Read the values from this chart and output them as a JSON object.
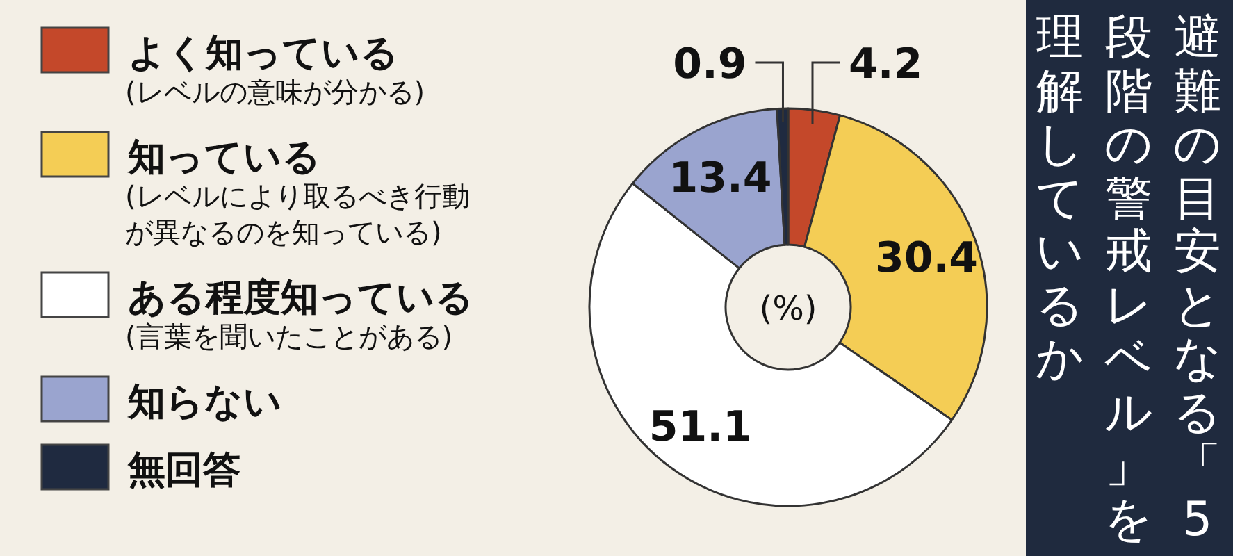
{
  "chart_data": {
    "type": "donut",
    "title": "避難の目安となる「5段階の警戒レベル」を理解しているか",
    "categories": [
      "よく知っている(レベルの意味が分かる)",
      "知っている(レベルにより取るべき行動が異なるのを知っている)",
      "ある程度知っている(言葉を聞いたことがある)",
      "知らない",
      "無回答"
    ],
    "values": [
      4.2,
      30.4,
      51.1,
      13.4,
      0.9
    ],
    "colors": [
      "#c4482a",
      "#f4cd55",
      "#ffffff",
      "#9aa4cf",
      "#1f2a40"
    ],
    "data_labels": true,
    "legend": "left",
    "annotations": [
      "(%)"
    ]
  }
}
